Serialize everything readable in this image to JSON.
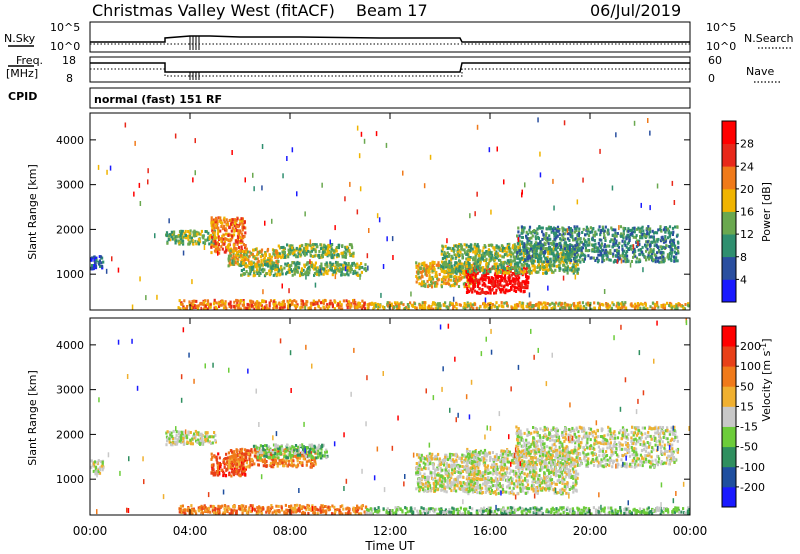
{
  "header": {
    "station": "Christmas Valley West (fitACF)",
    "beam": "Beam 17",
    "date": "06/Jul/2019"
  },
  "top_panels": {
    "nsky_label": "N.Sky",
    "nsearch_label": "N.Search",
    "noise_ticks_left": [
      "10^5",
      "10^0"
    ],
    "noise_ticks_right": [
      "10^5",
      "10^0"
    ],
    "freq_label": "Freq.",
    "freq_unit": "[MHz]",
    "freq_ticks": [
      "18",
      "8"
    ],
    "nave_label": "Nave",
    "nave_ticks": [
      "60",
      "0"
    ],
    "cpid_label": "CPID",
    "cpid_value": "normal (fast) 151 RF"
  },
  "chart_data": [
    {
      "type": "heatmap",
      "title": "",
      "xlabel": "Time UT",
      "ylabel": "Slant Range [km]",
      "x_tick_labels": [
        "00:00",
        "04:00",
        "08:00",
        "12:00",
        "16:00",
        "20:00",
        "00:00"
      ],
      "x_ticks_hours": [
        0,
        4,
        8,
        12,
        16,
        20,
        24
      ],
      "xlim": [
        0,
        24
      ],
      "y_ticks": [
        1000,
        2000,
        3000,
        4000
      ],
      "ylim": [
        200,
        4600
      ],
      "colorbar": {
        "label": "Power [dB]",
        "ticks": [
          "4",
          "8",
          "12",
          "16",
          "20",
          "24",
          "28"
        ],
        "colors": [
          "#1a1aff",
          "#2a4f9f",
          "#2f8f6f",
          "#6aa84f",
          "#f0b400",
          "#f07a1a",
          "#e8281a",
          "#ff0000"
        ]
      },
      "echo_regions": [
        {
          "t0": 0.0,
          "t1": 0.5,
          "r0": 1150,
          "r1": 1450,
          "level": 1
        },
        {
          "t0": 3.0,
          "t1": 5.0,
          "r0": 1700,
          "r1": 2000,
          "level": 3
        },
        {
          "t0": 4.8,
          "t1": 6.2,
          "r0": 1500,
          "r1": 2300,
          "level": 5
        },
        {
          "t0": 5.5,
          "t1": 7.5,
          "r0": 1200,
          "r1": 1600,
          "level": 4
        },
        {
          "t0": 6.0,
          "t1": 11.0,
          "r0": 1000,
          "r1": 1300,
          "level": 3
        },
        {
          "t0": 7.5,
          "t1": 10.5,
          "r0": 1400,
          "r1": 1700,
          "level": 3
        },
        {
          "t0": 3.5,
          "t1": 11.0,
          "r0": 250,
          "r1": 450,
          "level": 5
        },
        {
          "t0": 13.0,
          "t1": 15.5,
          "r0": 750,
          "r1": 1300,
          "level": 4
        },
        {
          "t0": 15.0,
          "t1": 17.5,
          "r0": 600,
          "r1": 1200,
          "level": 7
        },
        {
          "t0": 14.0,
          "t1": 19.5,
          "r0": 1050,
          "r1": 1700,
          "level": 3
        },
        {
          "t0": 17.0,
          "t1": 23.5,
          "r0": 1300,
          "r1": 2100,
          "level": 2
        },
        {
          "t0": 11.0,
          "t1": 24.0,
          "r0": 250,
          "r1": 400,
          "level": 4
        }
      ]
    },
    {
      "type": "heatmap",
      "title": "",
      "xlabel": "Time UT",
      "ylabel": "Slant Range [km]",
      "x_tick_labels": [
        "00:00",
        "04:00",
        "08:00",
        "12:00",
        "16:00",
        "20:00",
        "00:00"
      ],
      "x_ticks_hours": [
        0,
        4,
        8,
        12,
        16,
        20,
        24
      ],
      "xlim": [
        0,
        24
      ],
      "y_ticks": [
        1000,
        2000,
        3000,
        4000
      ],
      "ylim": [
        200,
        4600
      ],
      "colorbar": {
        "label": "Velocity [m s",
        "label_sup": "-1",
        "label_end": "]",
        "ticks": [
          "200",
          "100",
          "50",
          "15",
          "-15",
          "-50",
          "-100",
          "-200"
        ],
        "colors": [
          "#1a1aff",
          "#1f4f9f",
          "#2f8f5f",
          "#6ccc3a",
          "#c8c8c8",
          "#f0b030",
          "#f07a1a",
          "#e84018",
          "#ff0000"
        ]
      },
      "echo_regions": [
        {
          "t0": 0.0,
          "t1": 0.5,
          "r0": 1150,
          "r1": 1450,
          "level": 4
        },
        {
          "t0": 3.0,
          "t1": 5.0,
          "r0": 1800,
          "r1": 2100,
          "level": 4
        },
        {
          "t0": 4.8,
          "t1": 6.2,
          "r0": 1100,
          "r1": 1600,
          "level": 7
        },
        {
          "t0": 5.5,
          "t1": 9.0,
          "r0": 1300,
          "r1": 1700,
          "level": 6
        },
        {
          "t0": 6.5,
          "t1": 9.5,
          "r0": 1500,
          "r1": 1800,
          "level": 3
        },
        {
          "t0": 3.5,
          "t1": 11.0,
          "r0": 250,
          "r1": 450,
          "level": 6
        },
        {
          "t0": 13.0,
          "t1": 15.5,
          "r0": 750,
          "r1": 1600,
          "level": 4
        },
        {
          "t0": 15.0,
          "t1": 19.5,
          "r0": 700,
          "r1": 1700,
          "level": 4
        },
        {
          "t0": 17.0,
          "t1": 23.5,
          "r0": 1300,
          "r1": 2200,
          "level": 4
        },
        {
          "t0": 11.0,
          "t1": 24.0,
          "r0": 250,
          "r1": 400,
          "level": 3
        }
      ]
    }
  ]
}
